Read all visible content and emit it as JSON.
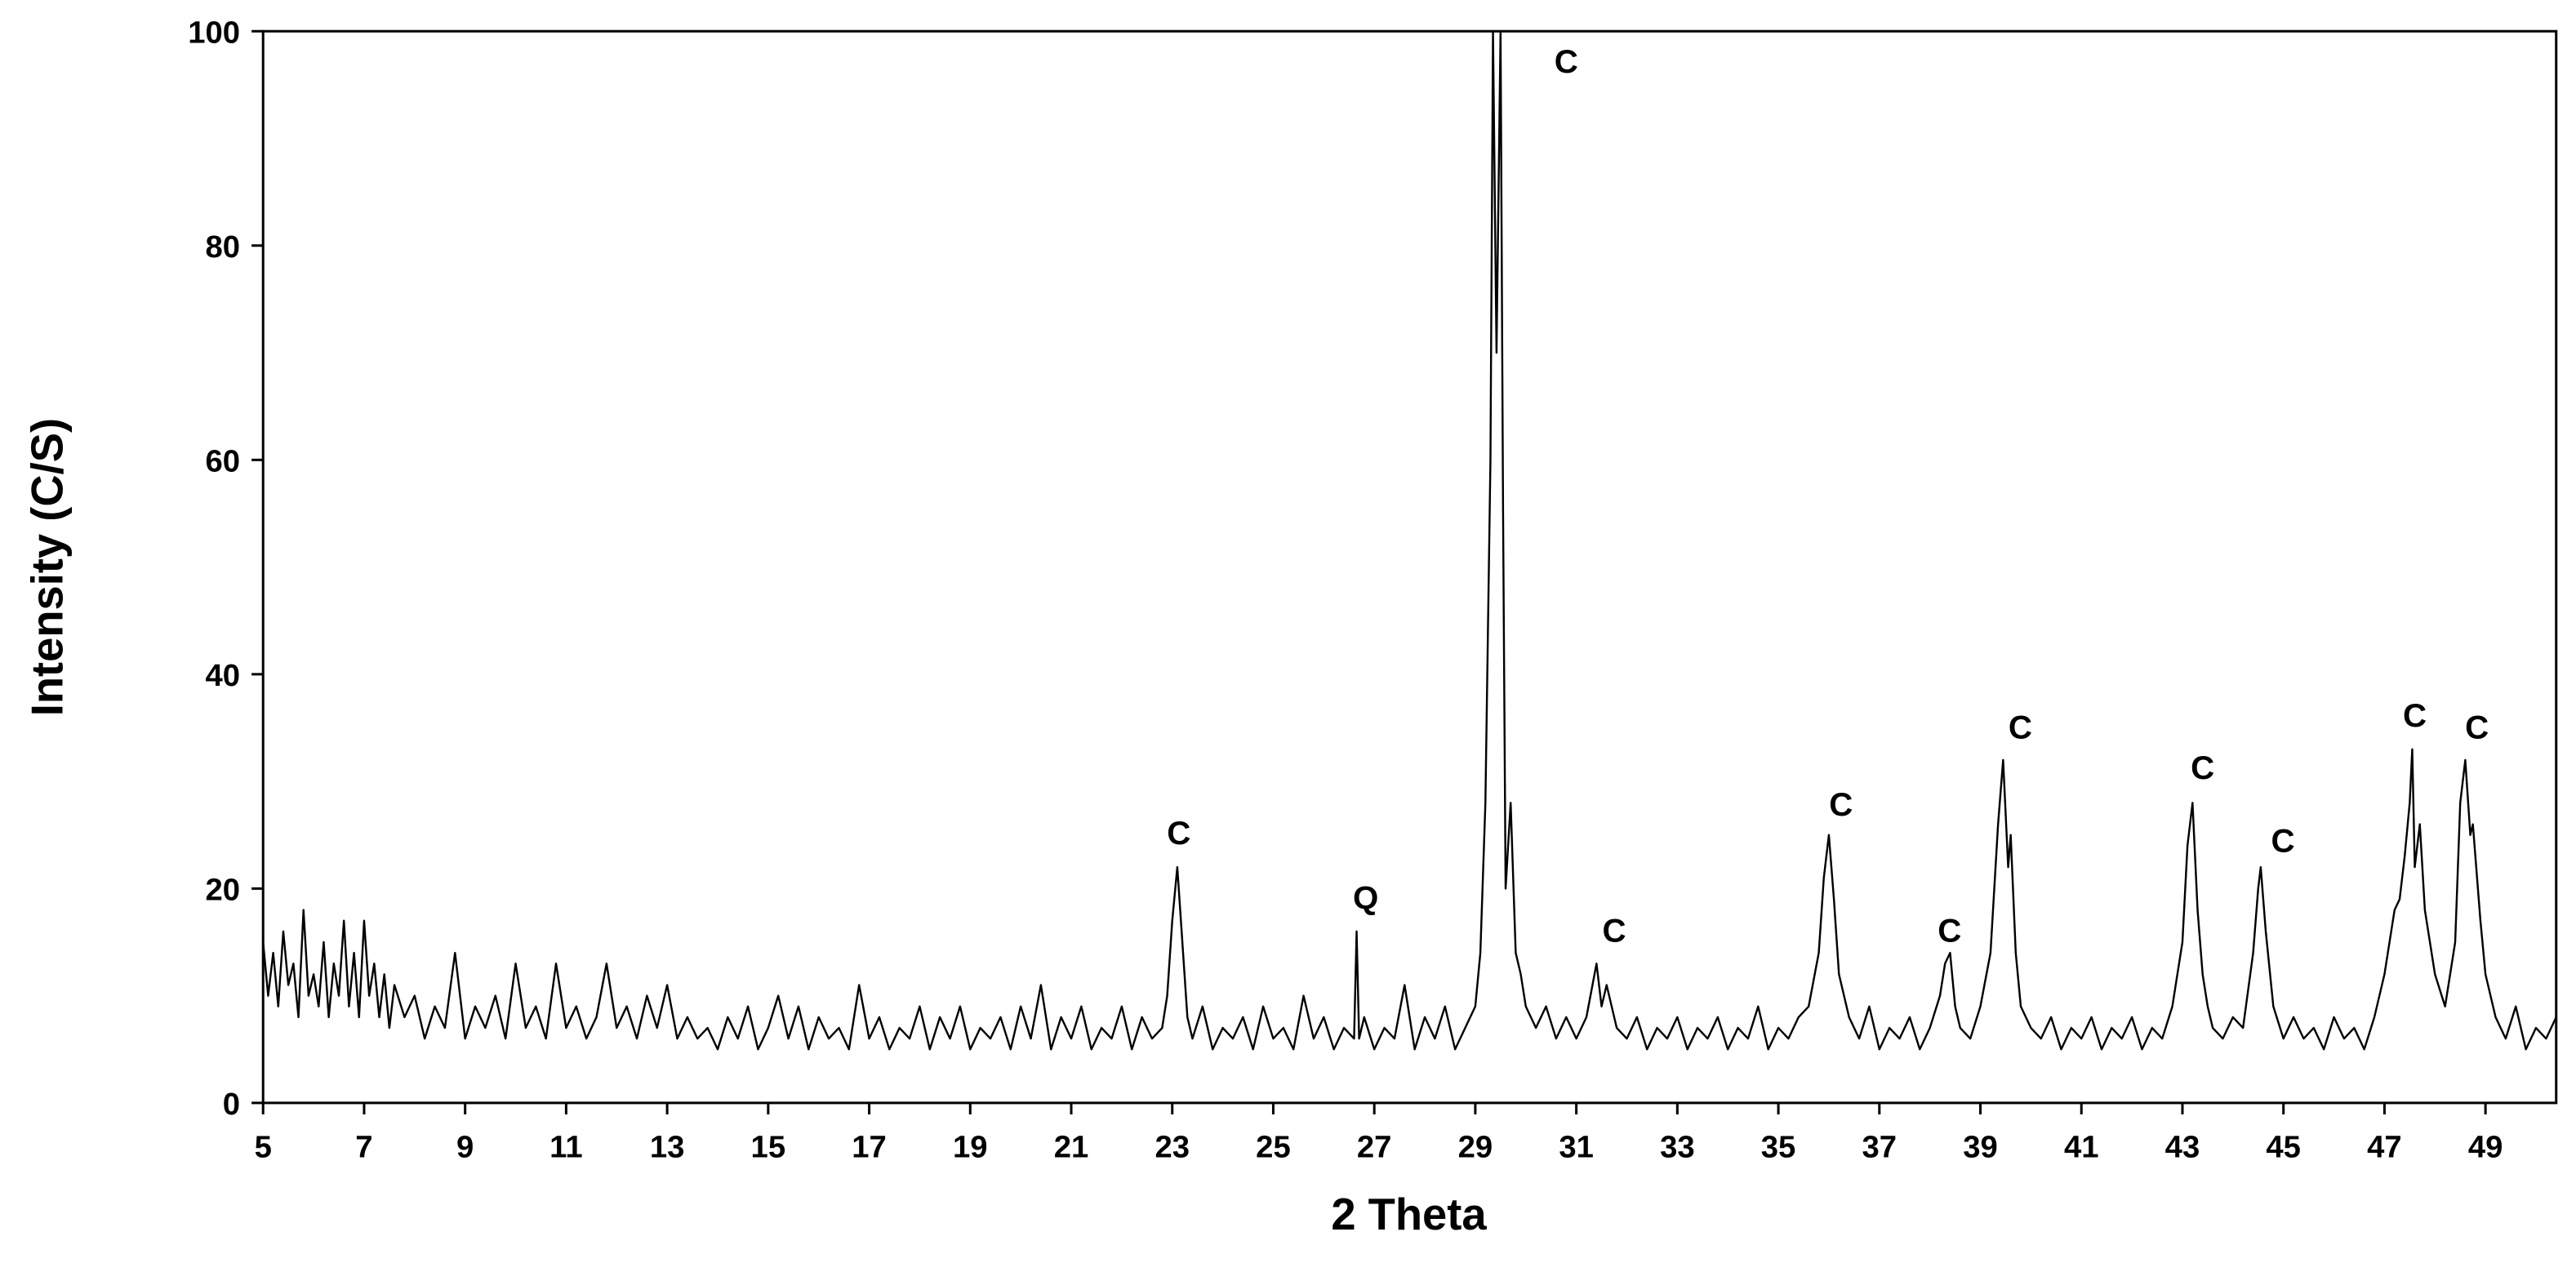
{
  "chart_data": {
    "type": "line",
    "x_label": "2 Theta",
    "y_label": "Intensity (C/S)",
    "color": "#000000",
    "x": [
      5,
      5.1,
      5.2,
      5.3,
      5.4,
      5.5,
      5.6,
      5.7,
      5.8,
      5.9,
      6,
      6.1,
      6.2,
      6.3,
      6.4,
      6.5,
      6.6,
      6.7,
      6.8,
      6.9,
      7,
      7.1,
      7.2,
      7.3,
      7.4,
      7.5,
      7.6,
      7.8,
      8,
      8.2,
      8.4,
      8.6,
      8.8,
      9,
      9.2,
      9.4,
      9.6,
      9.8,
      10,
      10.2,
      10.4,
      10.6,
      10.8,
      11,
      11.2,
      11.4,
      11.6,
      11.8,
      12,
      12.2,
      12.4,
      12.6,
      12.8,
      13,
      13.2,
      13.4,
      13.6,
      13.8,
      14,
      14.2,
      14.4,
      14.6,
      14.8,
      15,
      15.2,
      15.4,
      15.6,
      15.8,
      16,
      16.2,
      16.4,
      16.6,
      16.8,
      17,
      17.2,
      17.4,
      17.6,
      17.8,
      18,
      18.2,
      18.4,
      18.6,
      18.8,
      19,
      19.2,
      19.4,
      19.6,
      19.8,
      20,
      20.2,
      20.4,
      20.6,
      20.8,
      21,
      21.2,
      21.4,
      21.6,
      21.8,
      22,
      22.2,
      22.4,
      22.6,
      22.8,
      22.9,
      23,
      23.1,
      23.2,
      23.3,
      23.4,
      23.6,
      23.8,
      24,
      24.2,
      24.4,
      24.6,
      24.8,
      25,
      25.2,
      25.4,
      25.6,
      25.8,
      26,
      26.2,
      26.4,
      26.6,
      26.65,
      26.7,
      26.8,
      27,
      27.2,
      27.4,
      27.6,
      27.8,
      28,
      28.2,
      28.4,
      28.6,
      28.8,
      29,
      29.1,
      29.2,
      29.3,
      29.35,
      29.42,
      29.5,
      29.55,
      29.6,
      29.7,
      29.8,
      29.9,
      30,
      30.2,
      30.4,
      30.6,
      30.8,
      31,
      31.2,
      31.4,
      31.5,
      31.6,
      31.8,
      32,
      32.2,
      32.4,
      32.6,
      32.8,
      33,
      33.2,
      33.4,
      33.6,
      33.8,
      34,
      34.2,
      34.4,
      34.6,
      34.8,
      35,
      35.2,
      35.4,
      35.6,
      35.8,
      35.9,
      36,
      36.1,
      36.2,
      36.4,
      36.6,
      36.8,
      37,
      37.2,
      37.4,
      37.6,
      37.8,
      38,
      38.2,
      38.3,
      38.4,
      38.5,
      38.6,
      38.8,
      39,
      39.2,
      39.35,
      39.45,
      39.55,
      39.6,
      39.7,
      39.8,
      40,
      40.2,
      40.4,
      40.6,
      40.8,
      41,
      41.2,
      41.4,
      41.6,
      41.8,
      42,
      42.2,
      42.4,
      42.6,
      42.8,
      43,
      43.1,
      43.2,
      43.3,
      43.4,
      43.5,
      43.6,
      43.8,
      44,
      44.2,
      44.4,
      44.5,
      44.55,
      44.65,
      44.8,
      45,
      45.2,
      45.4,
      45.6,
      45.8,
      46,
      46.2,
      46.4,
      46.6,
      46.8,
      47,
      47.2,
      47.3,
      47.4,
      47.5,
      47.55,
      47.6,
      47.7,
      47.8,
      48,
      48.2,
      48.4,
      48.5,
      48.6,
      48.7,
      48.75,
      48.9,
      49,
      49.2,
      49.4,
      49.6,
      49.8,
      50,
      50.2,
      50.4
    ],
    "values": [
      15,
      10,
      14,
      9,
      16,
      11,
      13,
      8,
      18,
      10,
      12,
      9,
      15,
      8,
      13,
      10,
      17,
      9,
      14,
      8,
      17,
      10,
      13,
      8,
      12,
      7,
      11,
      8,
      10,
      6,
      9,
      7,
      14,
      6,
      9,
      7,
      10,
      6,
      13,
      7,
      9,
      6,
      13,
      7,
      9,
      6,
      8,
      13,
      7,
      9,
      6,
      10,
      7,
      11,
      6,
      8,
      6,
      7,
      5,
      8,
      6,
      9,
      5,
      7,
      10,
      6,
      9,
      5,
      8,
      6,
      7,
      5,
      11,
      6,
      8,
      5,
      7,
      6,
      9,
      5,
      8,
      6,
      9,
      5,
      7,
      6,
      8,
      5,
      9,
      6,
      11,
      5,
      8,
      6,
      9,
      5,
      7,
      6,
      9,
      5,
      8,
      6,
      7,
      10,
      17,
      22,
      15,
      8,
      6,
      9,
      5,
      7,
      6,
      8,
      5,
      9,
      6,
      7,
      5,
      10,
      6,
      8,
      5,
      7,
      6,
      16,
      6,
      8,
      5,
      7,
      6,
      11,
      5,
      8,
      6,
      9,
      5,
      7,
      9,
      14,
      28,
      60,
      100,
      70,
      100,
      55,
      20,
      28,
      14,
      12,
      9,
      7,
      9,
      6,
      8,
      6,
      8,
      13,
      9,
      11,
      7,
      6,
      8,
      5,
      7,
      6,
      8,
      5,
      7,
      6,
      8,
      5,
      7,
      6,
      9,
      5,
      7,
      6,
      8,
      9,
      14,
      21,
      25,
      19,
      12,
      8,
      6,
      9,
      5,
      7,
      6,
      8,
      5,
      7,
      10,
      13,
      14,
      9,
      7,
      6,
      9,
      14,
      26,
      32,
      22,
      25,
      14,
      9,
      7,
      6,
      8,
      5,
      7,
      6,
      8,
      5,
      7,
      6,
      8,
      5,
      7,
      6,
      9,
      15,
      24,
      28,
      18,
      12,
      9,
      7,
      6,
      8,
      7,
      14,
      20,
      22,
      16,
      9,
      6,
      8,
      6,
      7,
      5,
      8,
      6,
      7,
      5,
      8,
      12,
      18,
      19,
      23,
      28,
      33,
      22,
      26,
      18,
      12,
      9,
      15,
      28,
      32,
      25,
      26,
      17,
      12,
      8,
      6,
      9,
      5,
      7,
      6,
      8
    ],
    "xlim": [
      5,
      50.4
    ],
    "ylim": [
      0,
      100
    ],
    "xticks": [
      5,
      7,
      9,
      11,
      13,
      15,
      17,
      19,
      21,
      23,
      25,
      27,
      29,
      31,
      33,
      35,
      37,
      39,
      41,
      43,
      45,
      47,
      49
    ],
    "yticks": [
      0,
      20,
      40,
      60,
      80,
      100
    ],
    "grid": false,
    "annotations": [
      {
        "text": "C",
        "x": 23.13,
        "y": 25.2
      },
      {
        "text": "Q",
        "x": 26.83,
        "y": 19.2
      },
      {
        "text": "C",
        "x": 30.8,
        "y": 97.2
      },
      {
        "text": "C",
        "x": 31.75,
        "y": 16.1
      },
      {
        "text": "C",
        "x": 36.24,
        "y": 27.9
      },
      {
        "text": "C",
        "x": 38.39,
        "y": 16.1
      },
      {
        "text": "C",
        "x": 39.79,
        "y": 35.1
      },
      {
        "text": "C",
        "x": 43.4,
        "y": 31.3
      },
      {
        "text": "C",
        "x": 44.99,
        "y": 24.5
      },
      {
        "text": "C",
        "x": 47.6,
        "y": 36.2
      },
      {
        "text": "C",
        "x": 48.83,
        "y": 35.1
      }
    ]
  }
}
